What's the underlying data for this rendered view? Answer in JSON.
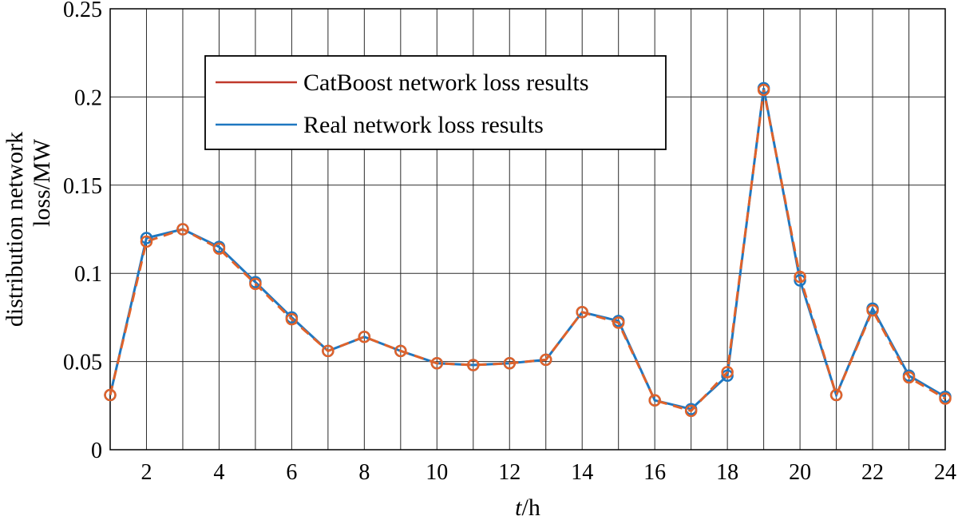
{
  "chart_data": {
    "type": "line",
    "x": [
      1,
      2,
      3,
      4,
      5,
      6,
      7,
      8,
      9,
      10,
      11,
      12,
      13,
      14,
      15,
      16,
      17,
      18,
      19,
      20,
      21,
      22,
      23,
      24
    ],
    "series": [
      {
        "name": "Real network loss results",
        "color": "#1f77c0",
        "values": [
          0.031,
          0.12,
          0.125,
          0.115,
          0.095,
          0.075,
          0.056,
          0.064,
          0.056,
          0.049,
          0.048,
          0.049,
          0.051,
          0.078,
          0.073,
          0.028,
          0.023,
          0.042,
          0.205,
          0.096,
          0.031,
          0.08,
          0.042,
          0.03
        ]
      },
      {
        "name": "CatBoost network loss results",
        "color": "#e0622a",
        "values": [
          0.031,
          0.118,
          0.125,
          0.114,
          0.094,
          0.074,
          0.056,
          0.064,
          0.056,
          0.049,
          0.048,
          0.049,
          0.051,
          0.078,
          0.072,
          0.028,
          0.022,
          0.044,
          0.204,
          0.098,
          0.031,
          0.079,
          0.041,
          0.029
        ]
      }
    ],
    "legend": [
      {
        "name": "CatBoost network loss results",
        "color": "#c0392b"
      },
      {
        "name": "Real network loss results",
        "color": "#1f77c0"
      }
    ],
    "legend_position": "top-left",
    "xlabel_italic": "t",
    "xlabel_rest": "/h",
    "ylabel_line1": "distribution network",
    "ylabel_line2": "loss/MW",
    "xlim": [
      1,
      24
    ],
    "ylim": [
      0,
      0.25
    ],
    "x_ticks": [
      2,
      4,
      6,
      8,
      10,
      12,
      14,
      16,
      18,
      20,
      22,
      24
    ],
    "x_tick_labels": [
      "2",
      "4",
      "6",
      "8",
      "10",
      "12",
      "14",
      "16",
      "18",
      "20",
      "22",
      "24"
    ],
    "x_grid": [
      2,
      3,
      4,
      5,
      6,
      7,
      8,
      9,
      10,
      11,
      12,
      13,
      14,
      15,
      16,
      17,
      18,
      19,
      20,
      21,
      22,
      23,
      24
    ],
    "y_ticks": [
      0,
      0.05,
      0.1,
      0.15,
      0.2,
      0.25
    ],
    "y_tick_labels": [
      "0",
      "0.05",
      "0.1",
      "0.15",
      "0.2",
      "0.25"
    ],
    "grid": true
  }
}
